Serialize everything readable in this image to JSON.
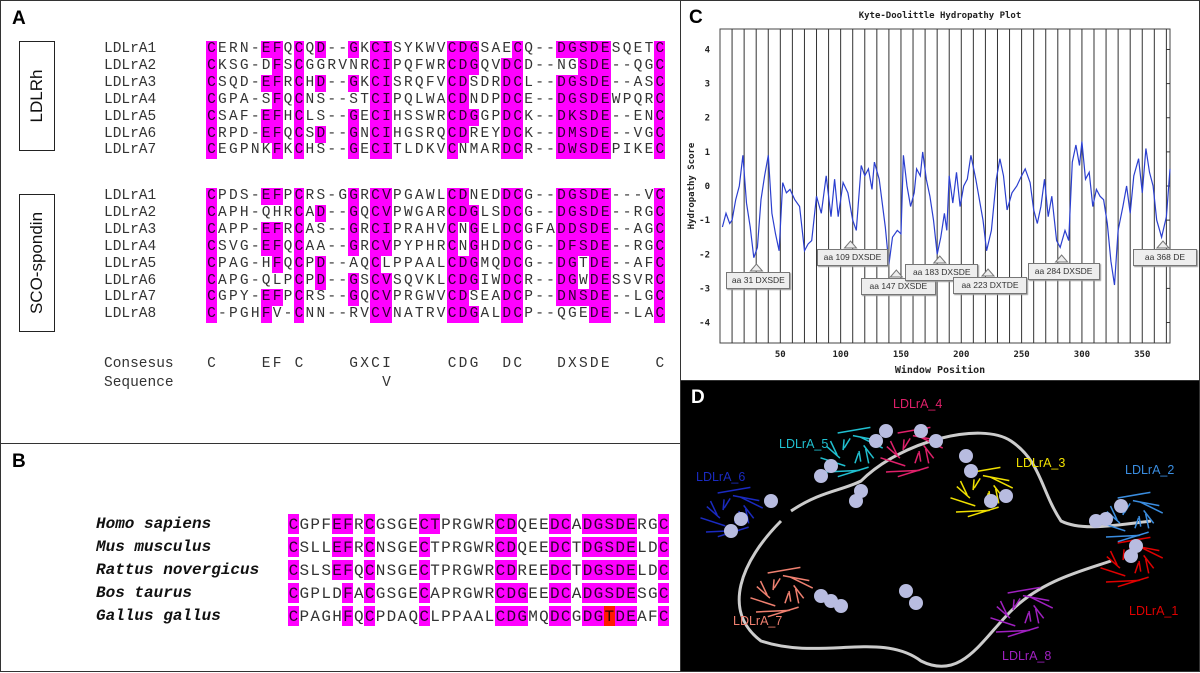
{
  "panels": {
    "a": "A",
    "b": "B",
    "c": "C",
    "d": "D"
  },
  "panel_a": {
    "groups": [
      {
        "label": "LDLRh",
        "rows": [
          {
            "name": "LDLrA1",
            "seq": "CERN-EFQCQD--GKCISYKWVCDGSAECQ--DGSDESQETC"
          },
          {
            "name": "LDLrA2",
            "seq": "CKSG-DFSCGGRVNRCIPQFWRCDGQVDCD--NGSDE--QGC"
          },
          {
            "name": "LDLrA3",
            "seq": "CSQD-EFRCHD--GKCISRQFVCDSDRDCL--DGSDE--ASC"
          },
          {
            "name": "LDLrA4",
            "seq": "CGPA-SFQCNS--STCIPQLWACDNDPDCE--DGSDEWPQRC"
          },
          {
            "name": "LDLrA5",
            "seq": "CSAF-EFHCLS--GECIHSSWRCDGGPDCK--DKSDE--ENC"
          },
          {
            "name": "LDLrA6",
            "seq": "CRPD-EFQCSD--GNCIHGSRQCDREYDCK--DMSDE--VGC"
          },
          {
            "name": "LDLrA7",
            "seq": "CEGPNKFKCHS--GECITLDKVCNMARDCR--DWSDEPIKEC"
          }
        ]
      },
      {
        "label": "SCO-spondin",
        "rows": [
          {
            "name": "LDLrA1",
            "seq": "CPDS-EFPCRS-GGRCVPGAWLCDNEDDCG--DGSDE---VC"
          },
          {
            "name": "LDLrA2",
            "seq": "CAPH-QHRCAD--GQCVPWGARCDGLSDCG--DGSDE--RGC"
          },
          {
            "name": "LDLrA3",
            "seq": "CAPP-EFRCAS--GRCIPRAHVCNGELDCGFADDSDE--AGC"
          },
          {
            "name": "LDLrA4",
            "seq": "CSVG-EFQCAA--GRCVPYPHRCNGHDDCG--DFSDE--RGC"
          },
          {
            "name": "LDLrA5",
            "seq": "CPAG-HFQCPD--AQCLPPAALCDGMQDCG--DGTDE--AFC"
          },
          {
            "name": "LDLrA6",
            "seq": "CAPG-QLPCPD--GSCVSQVKLCDGIWDCR--DGWDESSVRC"
          },
          {
            "name": "LDLrA7",
            "seq": "CGPY-EFPCRS--GQCVPRGWVCDSEADCP--DNSDE--LGC"
          },
          {
            "name": "LDLrA8",
            "seq": "C-PGHFV-CNN--RVCVNATRVCDGALDCP--QGEDE--LAC"
          }
        ]
      }
    ],
    "consensus_label": "Consesus",
    "consensus": "C    EF C    GXCI     CDG  DC   DXSDE    C",
    "sequence_label": "Sequence",
    "sequence": "                V"
  },
  "panel_b": {
    "rows": [
      {
        "name": "Homo sapiens",
        "seq": "CGPFEFRCGSGECTPRGWRCDQEEDCADGSDERGC",
        "mask": "x...xx.x....xx.....xx...xx.xxxxx..x"
      },
      {
        "name": "Mus musculus",
        "seq": "CSLLEFRCNSGECTPRGWRCDQEEDCTDGSDELDC",
        "mask": "x...xx.x....x......xx...xx.xxxxx..x"
      },
      {
        "name": "Rattus novergicus",
        "seq": "CSLSEFQCNSGECTPRGWRCDREEDCTDGSDELDC",
        "mask": "x...xx.x....x......xx...xx.xxxxx..x"
      },
      {
        "name": "Bos taurus",
        "seq": "CGPLDFACGSGECAPRGWRCDGEEDCADGSDESGC",
        "mask": "x....x.x....x......xxx..xx.xxxxx..x"
      },
      {
        "name": "Gallus gallus",
        "seq": "CPAGHFQCPDAQCLPPAALCDGMQDCGDGTDEAFC",
        "mask": "x....x.x....x......xxx..xx.xxrxx..x"
      }
    ],
    "highlight_color": "#ff00ff",
    "mismatch_color": "#ff1a00"
  },
  "chart_data": {
    "type": "line",
    "title": "Kyte-Doolittle Hydropathy Plot",
    "xlabel": "Window Position",
    "ylabel": "Hydropathy Score",
    "xlim": [
      0,
      373
    ],
    "ylim": [
      -4.6,
      4.6
    ],
    "xticks": [
      50,
      100,
      150,
      200,
      250,
      300,
      350
    ],
    "yticks": [
      4,
      3,
      2,
      1,
      0,
      -1,
      -2,
      -3,
      -4
    ],
    "grid": "vertical lines every 10",
    "line_color": "#2b3fcf",
    "x": [
      2,
      5,
      8,
      10,
      13,
      16,
      19,
      22,
      25,
      28,
      31,
      34,
      37,
      40,
      43,
      46,
      49,
      52,
      55,
      58,
      62,
      66,
      70,
      73,
      76,
      80,
      84,
      88,
      92,
      95,
      98,
      102,
      106,
      110,
      113,
      117,
      120,
      123,
      126,
      128,
      132,
      137,
      140,
      143,
      147,
      150,
      152,
      155,
      158,
      161,
      163,
      166,
      168,
      171,
      174,
      177,
      180,
      183,
      186,
      188,
      190,
      193,
      196,
      199,
      202,
      205,
      208,
      212,
      218,
      221,
      225,
      229,
      232,
      235,
      238,
      242,
      246,
      250,
      253,
      257,
      260,
      263,
      266,
      269,
      272,
      275,
      279,
      282,
      286,
      289,
      292,
      295,
      298,
      300,
      303,
      306,
      309,
      312,
      315,
      318,
      321,
      324,
      327,
      330,
      334,
      337,
      340,
      343,
      347,
      350,
      353,
      356,
      359,
      362,
      366,
      370,
      373
    ],
    "y": [
      -1.2,
      -0.8,
      -1.1,
      -1.0,
      -0.4,
      0.0,
      0.9,
      -0.5,
      -1.2,
      -2.1,
      -1.8,
      -0.4,
      0.3,
      0.9,
      -0.8,
      -1.4,
      -1.9,
      0.1,
      -0.2,
      -0.1,
      -0.4,
      -0.6,
      -1.9,
      -1.7,
      -1.6,
      -0.3,
      -0.8,
      0.3,
      -0.9,
      0.2,
      -0.9,
      0.1,
      -0.2,
      -1.0,
      -1.3,
      0.6,
      0.3,
      0.5,
      -0.1,
      0.7,
      0.2,
      -1.2,
      -2.3,
      -1.5,
      -1.3,
      -1.4,
      0.9,
      0.0,
      -0.6,
      -0.2,
      0.5,
      0.3,
      1.0,
      0.2,
      -0.3,
      -1.0,
      -2.0,
      -1.5,
      -0.8,
      -1.3,
      0.3,
      -0.5,
      0.4,
      -0.6,
      0.0,
      0.2,
      0.9,
      0.2,
      -1.0,
      -1.9,
      -1.3,
      0.2,
      0.8,
      0.3,
      -0.7,
      -0.2,
      0.0,
      0.3,
      0.5,
      0.1,
      -0.7,
      -1.1,
      -0.6,
      0.2,
      -0.9,
      -0.3,
      -1.6,
      -1.8,
      -1.3,
      -1.6,
      0.7,
      1.2,
      0.6,
      1.3,
      0.2,
      0.4,
      -0.6,
      -0.1,
      -0.3,
      -0.4,
      -1.1,
      -2.2,
      -2.9,
      -1.3,
      -0.6,
      0.0,
      -0.8,
      0.3,
      0.8,
      -0.2,
      1.1,
      0.4,
      0.0,
      -1.0,
      -1.5,
      -0.9,
      0.5
    ],
    "annotations": [
      {
        "x": 31,
        "text": "aa 31 DXSDE"
      },
      {
        "x": 109,
        "text": "aa 109 DXSDE"
      },
      {
        "x": 147,
        "text": "aa 147 DXSDE"
      },
      {
        "x": 183,
        "text": "aa 183 DXSDE"
      },
      {
        "x": 223,
        "text": "aa 223 DXTDE"
      },
      {
        "x": 284,
        "text": "aa 284 DXSDE"
      },
      {
        "x": 368,
        "text": "aa 368 DE"
      }
    ]
  },
  "panel_d": {
    "labels": [
      {
        "text": "LDLrA_1",
        "color": "#e00000"
      },
      {
        "text": "LDLrA_2",
        "color": "#3a8de0"
      },
      {
        "text": "LDLrA_3",
        "color": "#f0e000"
      },
      {
        "text": "LDLrA_4",
        "color": "#e0206a"
      },
      {
        "text": "LDLrA_5",
        "color": "#20c0d0"
      },
      {
        "text": "LDLrA_6",
        "color": "#1a2ac0"
      },
      {
        "text": "LDLrA_7",
        "color": "#f08070"
      },
      {
        "text": "LDLrA_8",
        "color": "#a020c0"
      }
    ]
  }
}
